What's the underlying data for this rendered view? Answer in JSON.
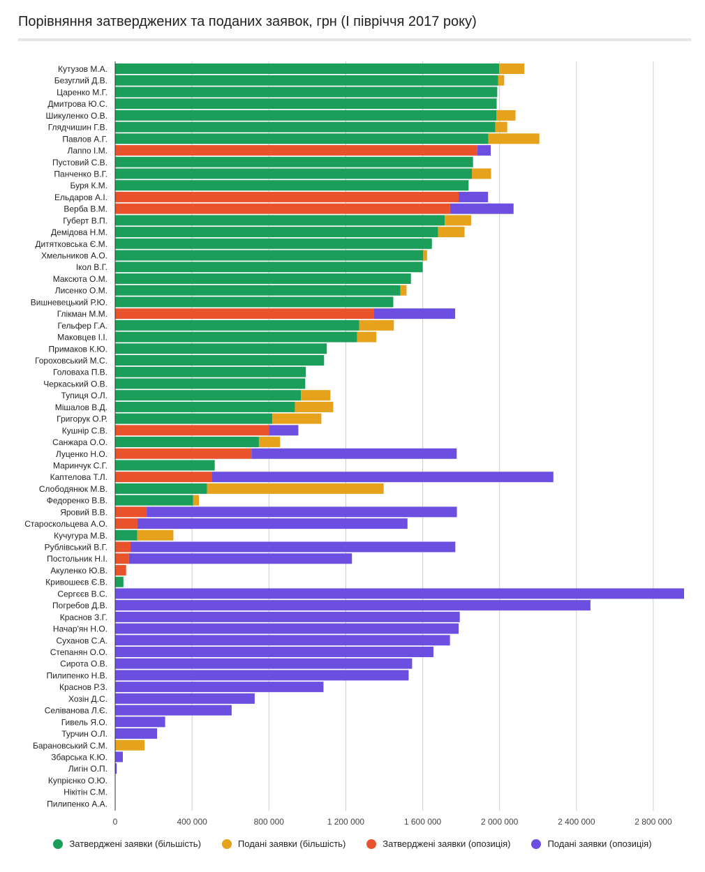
{
  "title": "Порівняння затверджених та поданих заявок, грн (І півріччя 2017 року)",
  "colors": {
    "approved_majority": "#1b9e5a",
    "submitted_majority": "#e6a21c",
    "approved_opposition": "#e8532b",
    "submitted_opposition": "#6c4fe0",
    "grid": "#cccccc",
    "axis": "#333333"
  },
  "chart_data": {
    "type": "bar",
    "orientation": "horizontal",
    "stacked": true,
    "xlim": [
      0,
      2960000
    ],
    "xticks": [
      {
        "value": 0,
        "label": "0"
      },
      {
        "value": 400000,
        "label": "400 000"
      },
      {
        "value": 800000,
        "label": "800 000"
      },
      {
        "value": 1200000,
        "label": "1 200 000"
      },
      {
        "value": 1600000,
        "label": "1 600 000"
      },
      {
        "value": 2000000,
        "label": "2 000 000"
      },
      {
        "value": 2400000,
        "label": "2 400 000"
      },
      {
        "value": 2800000,
        "label": "2 800 000"
      }
    ],
    "grid": true,
    "legend_position": "bottom",
    "categories": [
      "Кутузов М.А.",
      "Безуглий Д.В.",
      "Царенко М.Г.",
      "Дмитрова Ю.С.",
      "Шикуленко О.В.",
      "Глядчишин Г.В.",
      "Павлов А.Г.",
      "Лаппо І.М.",
      "Пустовий С.В.",
      "Панченко В.Г.",
      "Буря К.М.",
      "Ельдаров А.І.",
      "Верба В.М.",
      "Губерт В.П.",
      "Демідова Н.М.",
      "Дитятковська Є.М.",
      "Хмельников А.О.",
      "Ікол В.Г.",
      "Максюта О.М.",
      "Лисенко О.М.",
      "Вишневецький Р.Ю.",
      "Глікман М.М.",
      "Гельфер Г.А.",
      "Маковцев І.І.",
      "Примаков К.Ю.",
      "Гороховський М.С.",
      "Головаха П.В.",
      "Черкаський О.В.",
      "Тупиця О.Л.",
      "Мішалов В.Д.",
      "Григорук О.Р.",
      "Кушнір С.В.",
      "Санжара О.О.",
      "Луценко Н.О.",
      "Маринчук С.Г.",
      "Каптелова Т.Л.",
      "Слободянюк М.В.",
      "Федоренко В.В.",
      "Яровий В.В.",
      "Староскольцева А.О.",
      "Кучугура М.В.",
      "Рублівський В.Г.",
      "Постольник Н.І.",
      "Акуленко Ю.В.",
      "Кривошеєв Є.В.",
      "Сергєєв В.С.",
      "Погребов Д.В.",
      "Краснов З.Г.",
      "Начар'ян Н.О.",
      "Суханов С.А.",
      "Степанян О.О.",
      "Сирота О.В.",
      "Пилипенко Н.В.",
      "Краснов Р.З.",
      "Хозін Д.С.",
      "Селіванова Л.Є.",
      "Гивель Я.О.",
      "Турчин О.Л.",
      "Барановський С.М.",
      "Збарська К.Ю.",
      "Лигін О.П.",
      "Купрієнко О.Ю.",
      "Нікітін С.М.",
      "Пилипенко А.А."
    ],
    "series": [
      {
        "name": "Затверджені заявки (більшість)",
        "color": "#1b9e5a",
        "values": [
          1998000,
          1993000,
          1988000,
          1985000,
          1983000,
          1978000,
          1942000,
          0,
          1862000,
          1856000,
          1839000,
          0,
          0,
          1715000,
          1680000,
          1648000,
          1603000,
          1600000,
          1539000,
          1484000,
          1447000,
          0,
          1270000,
          1259000,
          1101000,
          1087000,
          992000,
          989000,
          967000,
          935000,
          818000,
          0,
          748000,
          0,
          518000,
          0,
          478000,
          406000,
          0,
          0,
          115000,
          0,
          0,
          0,
          43000,
          0,
          0,
          0,
          0,
          0,
          0,
          0,
          0,
          0,
          0,
          0,
          0,
          0,
          0,
          0,
          0,
          0,
          0,
          0
        ]
      },
      {
        "name": "Подані заявки (більшість)",
        "color": "#e6a21c",
        "values": [
          131000,
          31000,
          0,
          0,
          100000,
          62000,
          265000,
          0,
          0,
          100000,
          0,
          0,
          0,
          137000,
          138000,
          0,
          20000,
          0,
          0,
          32000,
          0,
          0,
          180000,
          100000,
          0,
          0,
          0,
          0,
          153000,
          200000,
          255000,
          0,
          110000,
          0,
          0,
          0,
          919000,
          30000,
          0,
          0,
          188000,
          0,
          0,
          0,
          0,
          0,
          0,
          0,
          0,
          0,
          0,
          0,
          0,
          0,
          0,
          0,
          0,
          0,
          153000,
          0,
          0,
          0,
          0,
          0
        ]
      },
      {
        "name": "Затверджені заявки (опозиція)",
        "color": "#e8532b",
        "values": [
          0,
          0,
          0,
          0,
          0,
          0,
          0,
          1884000,
          0,
          0,
          0,
          1787000,
          1743000,
          0,
          0,
          0,
          0,
          0,
          0,
          0,
          0,
          1345000,
          0,
          0,
          0,
          0,
          0,
          0,
          0,
          0,
          0,
          800000,
          0,
          709000,
          0,
          502000,
          0,
          0,
          164000,
          116000,
          0,
          80000,
          72000,
          57000,
          0,
          0,
          0,
          0,
          0,
          0,
          0,
          0,
          0,
          0,
          0,
          0,
          0,
          0,
          0,
          0,
          0,
          0,
          0,
          0
        ]
      },
      {
        "name": "Подані заявки (опозиція)",
        "color": "#6c4fe0",
        "values": [
          0,
          0,
          0,
          0,
          0,
          0,
          0,
          70000,
          0,
          0,
          0,
          153000,
          330000,
          0,
          0,
          0,
          0,
          0,
          0,
          0,
          0,
          424000,
          0,
          0,
          0,
          0,
          0,
          0,
          0,
          0,
          0,
          153000,
          0,
          1068000,
          0,
          1778000,
          0,
          0,
          1614000,
          1405000,
          0,
          1690000,
          1160000,
          0,
          0,
          2960000,
          2473000,
          1793000,
          1787000,
          1742000,
          1656000,
          1545000,
          1527000,
          1084000,
          726000,
          606000,
          260000,
          218000,
          0,
          40000,
          8000,
          0,
          0,
          0
        ]
      }
    ]
  }
}
